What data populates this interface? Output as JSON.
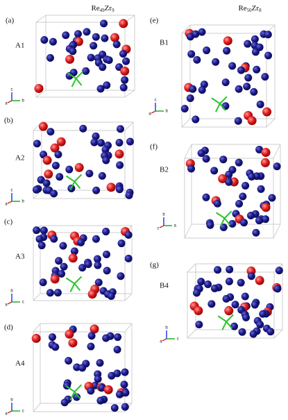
{
  "columns": [
    {
      "title": [
        "Re",
        "49",
        "Zr",
        "9"
      ]
    },
    {
      "title": [
        "Re",
        "50",
        "Zr",
        "8"
      ]
    }
  ],
  "panels": [
    {
      "tag": "(a)",
      "label": "A1",
      "axes": [
        "c",
        "b",
        "a"
      ]
    },
    {
      "tag": "(b)",
      "label": "A2",
      "axes": [
        "c",
        "b",
        "a"
      ]
    },
    {
      "tag": "(c)",
      "label": "A3",
      "axes": [
        "b",
        "c",
        "a"
      ]
    },
    {
      "tag": "(d)",
      "label": "A4",
      "axes": [
        "b",
        "c",
        "a"
      ]
    },
    {
      "tag": "(e)",
      "label": "B1",
      "axes": [
        "c",
        "b",
        "a"
      ]
    },
    {
      "tag": "(f)",
      "label": "B2",
      "axes": [
        "b",
        "a",
        "c"
      ]
    },
    {
      "tag": "(g)",
      "label": "B4",
      "axes": [
        "b",
        "c",
        "a"
      ]
    }
  ]
}
